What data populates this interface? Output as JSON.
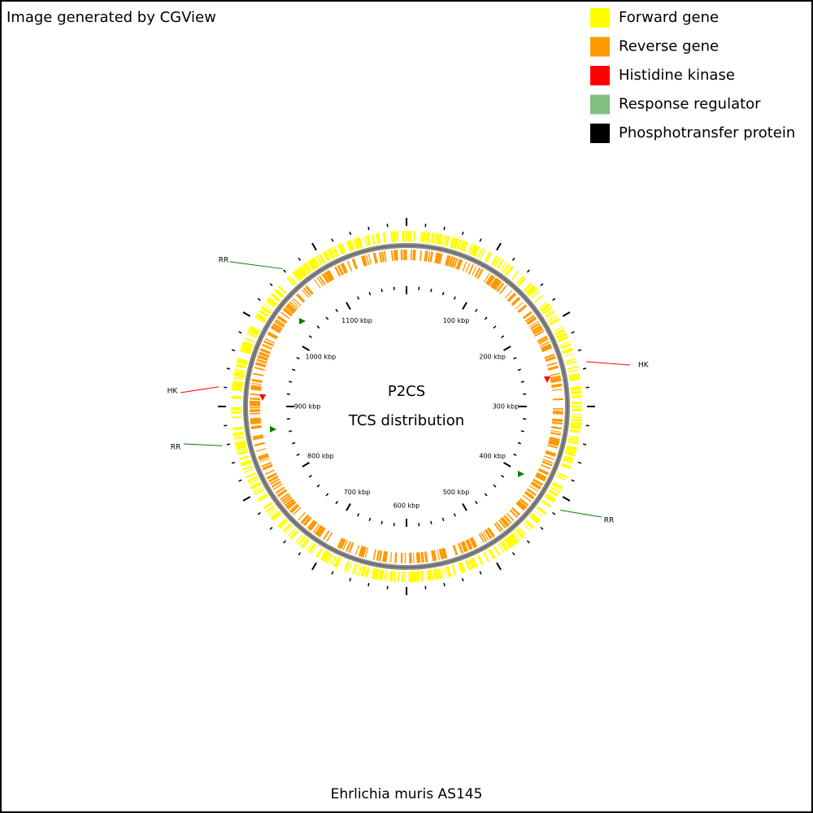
{
  "header": {
    "title": "Image generated by CGView"
  },
  "legend": [
    {
      "label": "Forward gene",
      "color": "#ffff00"
    },
    {
      "label": "Reverse gene",
      "color": "#ff9900"
    },
    {
      "label": "Histidine kinase",
      "color": "#ff0000"
    },
    {
      "label": "Response regulator",
      "color": "#7fbf7f"
    },
    {
      "label": "Phosphotransfer protein",
      "color": "#000000"
    }
  ],
  "center": {
    "line1": "P2CS",
    "line2": "TCS distribution"
  },
  "ticks": [
    "100 kbp",
    "200 kbp",
    "300 kbp",
    "400 kbp",
    "500 kbp",
    "600 kbp",
    "700 kbp",
    "800 kbp",
    "900 kbp",
    "1000 kbp",
    "1100 kbp"
  ],
  "features": [
    {
      "label": "RR",
      "color": "#007f00"
    },
    {
      "label": "HK",
      "color": "#ff0000"
    },
    {
      "label": "RR",
      "color": "#007f00"
    },
    {
      "label": "HK",
      "color": "#ff0000"
    },
    {
      "label": "RR",
      "color": "#007f00"
    }
  ],
  "footer": {
    "caption": "Ehrlichia muris AS145"
  }
}
